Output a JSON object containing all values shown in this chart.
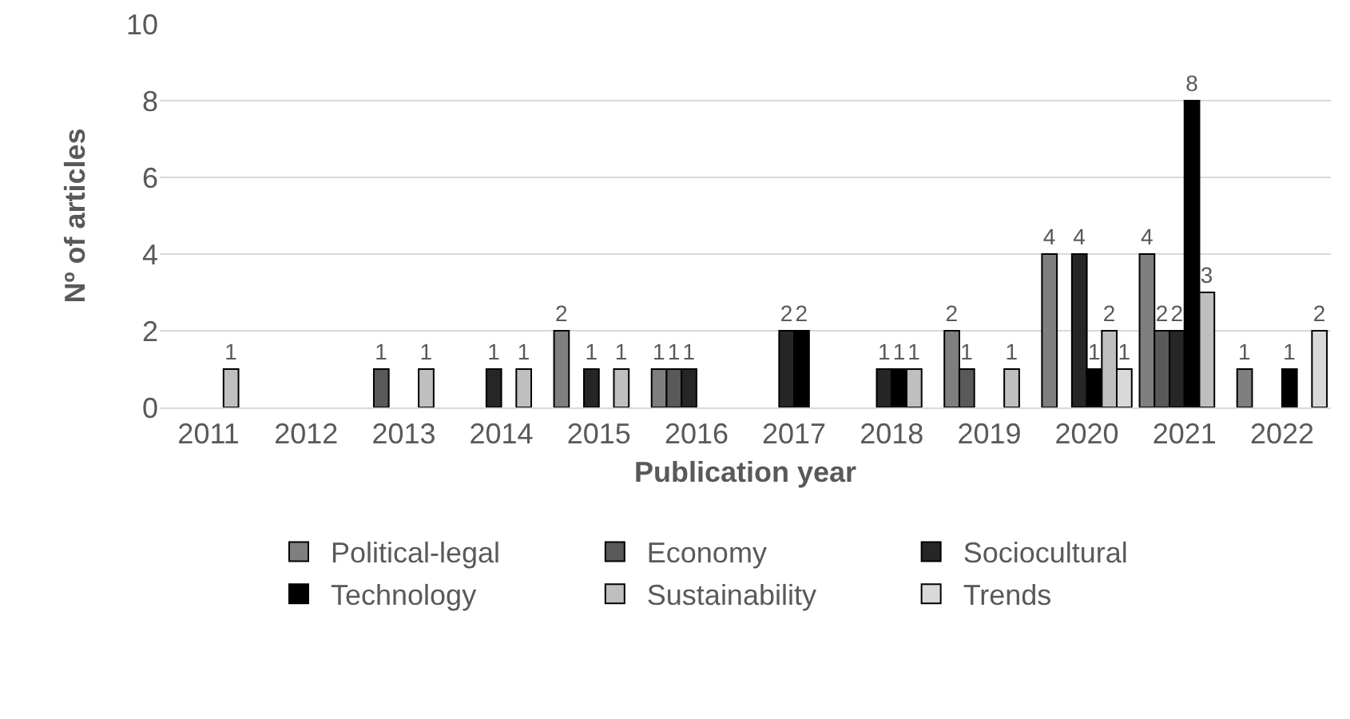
{
  "chart_data": {
    "type": "bar",
    "xlabel": "Publication year",
    "ylabel": "Nº of articles",
    "categories": [
      "2011",
      "2012",
      "2013",
      "2014",
      "2015",
      "2016",
      "2017",
      "2018",
      "2019",
      "2020",
      "2021",
      "2022"
    ],
    "series": [
      {
        "name": "Political-legal",
        "color": "#7f7f7f",
        "values": [
          null,
          null,
          null,
          null,
          2,
          1,
          null,
          null,
          2,
          4,
          4,
          1
        ]
      },
      {
        "name": "Economy",
        "color": "#595959",
        "values": [
          null,
          null,
          1,
          null,
          null,
          1,
          null,
          null,
          1,
          null,
          2,
          null
        ]
      },
      {
        "name": "Sociocultural",
        "color": "#262626",
        "values": [
          null,
          null,
          null,
          1,
          1,
          1,
          2,
          1,
          null,
          4,
          2,
          null
        ]
      },
      {
        "name": "Technology",
        "color": "#000000",
        "values": [
          null,
          null,
          null,
          null,
          null,
          null,
          2,
          1,
          null,
          1,
          8,
          1
        ]
      },
      {
        "name": "Sustainability",
        "color": "#bfbfbf",
        "values": [
          1,
          null,
          1,
          1,
          1,
          null,
          null,
          1,
          1,
          2,
          3,
          null
        ]
      },
      {
        "name": "Trends",
        "color": "#d9d9d9",
        "values": [
          null,
          null,
          null,
          null,
          null,
          null,
          null,
          null,
          null,
          1,
          null,
          2
        ]
      }
    ],
    "ylim": [
      0,
      10
    ],
    "yticks": [
      0,
      2,
      4,
      6,
      8,
      10
    ],
    "grid": "y",
    "legend": "bottom",
    "data_labels": true
  }
}
